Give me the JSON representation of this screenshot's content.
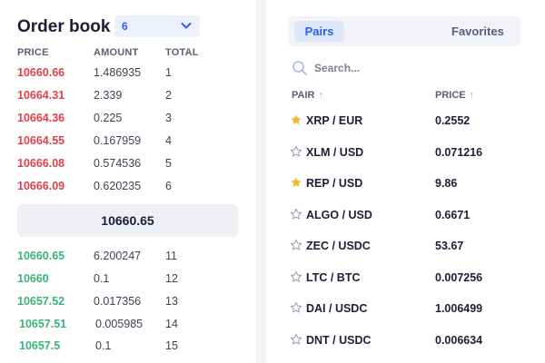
{
  "order_book": {
    "title": "Order book",
    "depth_select": "6",
    "headers": {
      "price": "PRICE",
      "amount": "AMOUNT",
      "total": "TOTAL"
    },
    "asks": [
      {
        "price": "10660.66",
        "amount": "1.486935",
        "total": "1"
      },
      {
        "price": "10664.31",
        "amount": "2.339",
        "total": "2"
      },
      {
        "price": "10664.36",
        "amount": "0.225",
        "total": "3"
      },
      {
        "price": "10664.55",
        "amount": "0.167959",
        "total": "4"
      },
      {
        "price": "10666.08",
        "amount": "0.574536",
        "total": "5"
      },
      {
        "price": "10666.09",
        "amount": "0.620235",
        "total": "6"
      }
    ],
    "spread_price": "10660.65",
    "bids": [
      {
        "price": "10660.65",
        "amount": "6.200247",
        "total": "11"
      },
      {
        "price": "10660",
        "amount": "0.1",
        "total": "12"
      },
      {
        "price": "10657.52",
        "amount": "0.017356",
        "total": "13"
      },
      {
        "price": "10657.51",
        "amount": "0.005985",
        "total": "14"
      },
      {
        "price": "10657.5",
        "amount": "0.1",
        "total": "15"
      }
    ],
    "colors": {
      "ask": "#e0404a",
      "bid": "#3cb37a"
    }
  },
  "pairs_panel": {
    "tabs": {
      "pairs": "Pairs",
      "favorites": "Favorites"
    },
    "search_placeholder": "Search...",
    "headers": {
      "pair": "PAIR",
      "price": "PRICE"
    },
    "rows": [
      {
        "pair": "XRP / EUR",
        "price": "0.2552",
        "favorite": true
      },
      {
        "pair": "XLM / USD",
        "price": "0.071216",
        "favorite": false
      },
      {
        "pair": "REP / USD",
        "price": "9.86",
        "favorite": true
      },
      {
        "pair": "ALGO / USD",
        "price": "0.6671",
        "favorite": false
      },
      {
        "pair": "ZEC / USDC",
        "price": "53.67",
        "favorite": false
      },
      {
        "pair": "LTC / BTC",
        "price": "0.007256",
        "favorite": false
      },
      {
        "pair": "DAI / USDC",
        "price": "1.006499",
        "favorite": false
      },
      {
        "pair": "DNT / USDC",
        "price": "0.006634",
        "favorite": false
      }
    ],
    "colors": {
      "accent": "#2f5fe8",
      "star_on": "#f5b731",
      "star_off": "#8e94a8"
    }
  }
}
